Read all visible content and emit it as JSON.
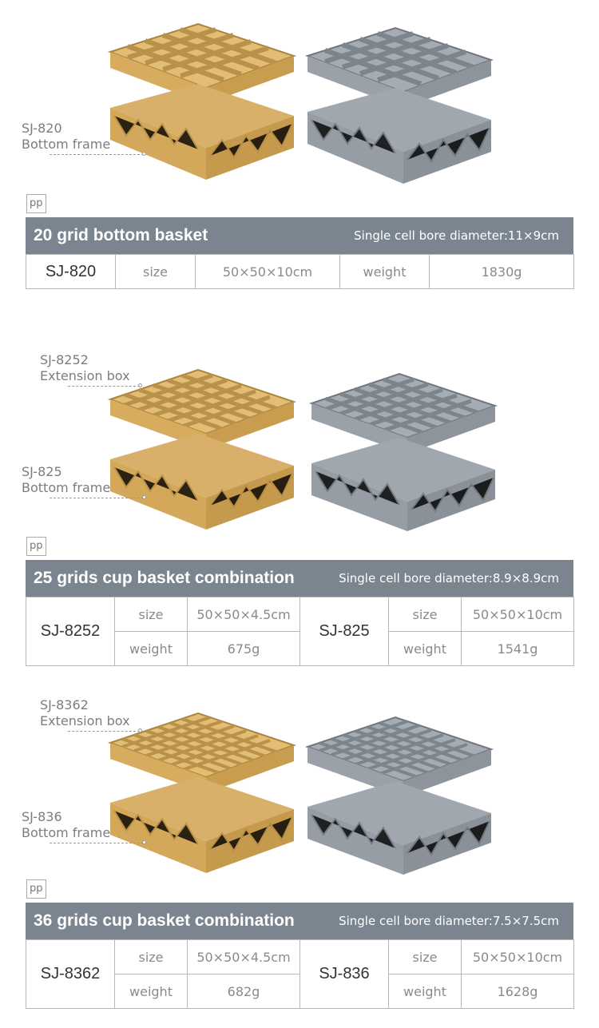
{
  "colors": {
    "tan": "#d9b36a",
    "grey": "#9aa1a8",
    "header": "#7b8590"
  },
  "section1": {
    "label_code": "SJ-820",
    "label_name": "Bottom frame",
    "material": "pp",
    "title": "20 grid bottom basket",
    "bore": "Single cell bore diameter:11×9cm",
    "code": "SJ-820",
    "size_label": "size",
    "size_value": "50×50×10cm",
    "weight_label": "weight",
    "weight_value": "1830g"
  },
  "section2": {
    "ext_label_code": "SJ-8252",
    "ext_label_name": "Extension box",
    "bottom_label_code": "SJ-825",
    "bottom_label_name": "Bottom frame",
    "material": "pp",
    "title": "25 grids cup basket combination",
    "bore": "Single cell bore diameter:8.9×8.9cm",
    "left": {
      "code": "SJ-8252",
      "size_label": "size",
      "size_value": "50×50×4.5cm",
      "weight_label": "weight",
      "weight_value": "675g"
    },
    "right": {
      "code": "SJ-825",
      "size_label": "size",
      "size_value": "50×50×10cm",
      "weight_label": "weight",
      "weight_value": "1541g"
    }
  },
  "section3": {
    "ext_label_code": "SJ-8362",
    "ext_label_name": "Extension box",
    "bottom_label_code": "SJ-836",
    "bottom_label_name": "Bottom frame",
    "material": "pp",
    "title": "36 grids cup basket combination",
    "bore": "Single cell bore diameter:7.5×7.5cm",
    "left": {
      "code": "SJ-8362",
      "size_label": "size",
      "size_value": "50×50×4.5cm",
      "weight_label": "weight",
      "weight_value": "682g"
    },
    "right": {
      "code": "SJ-836",
      "size_label": "size",
      "size_value": "50×50×10cm",
      "weight_label": "weight",
      "weight_value": "1628g"
    }
  }
}
